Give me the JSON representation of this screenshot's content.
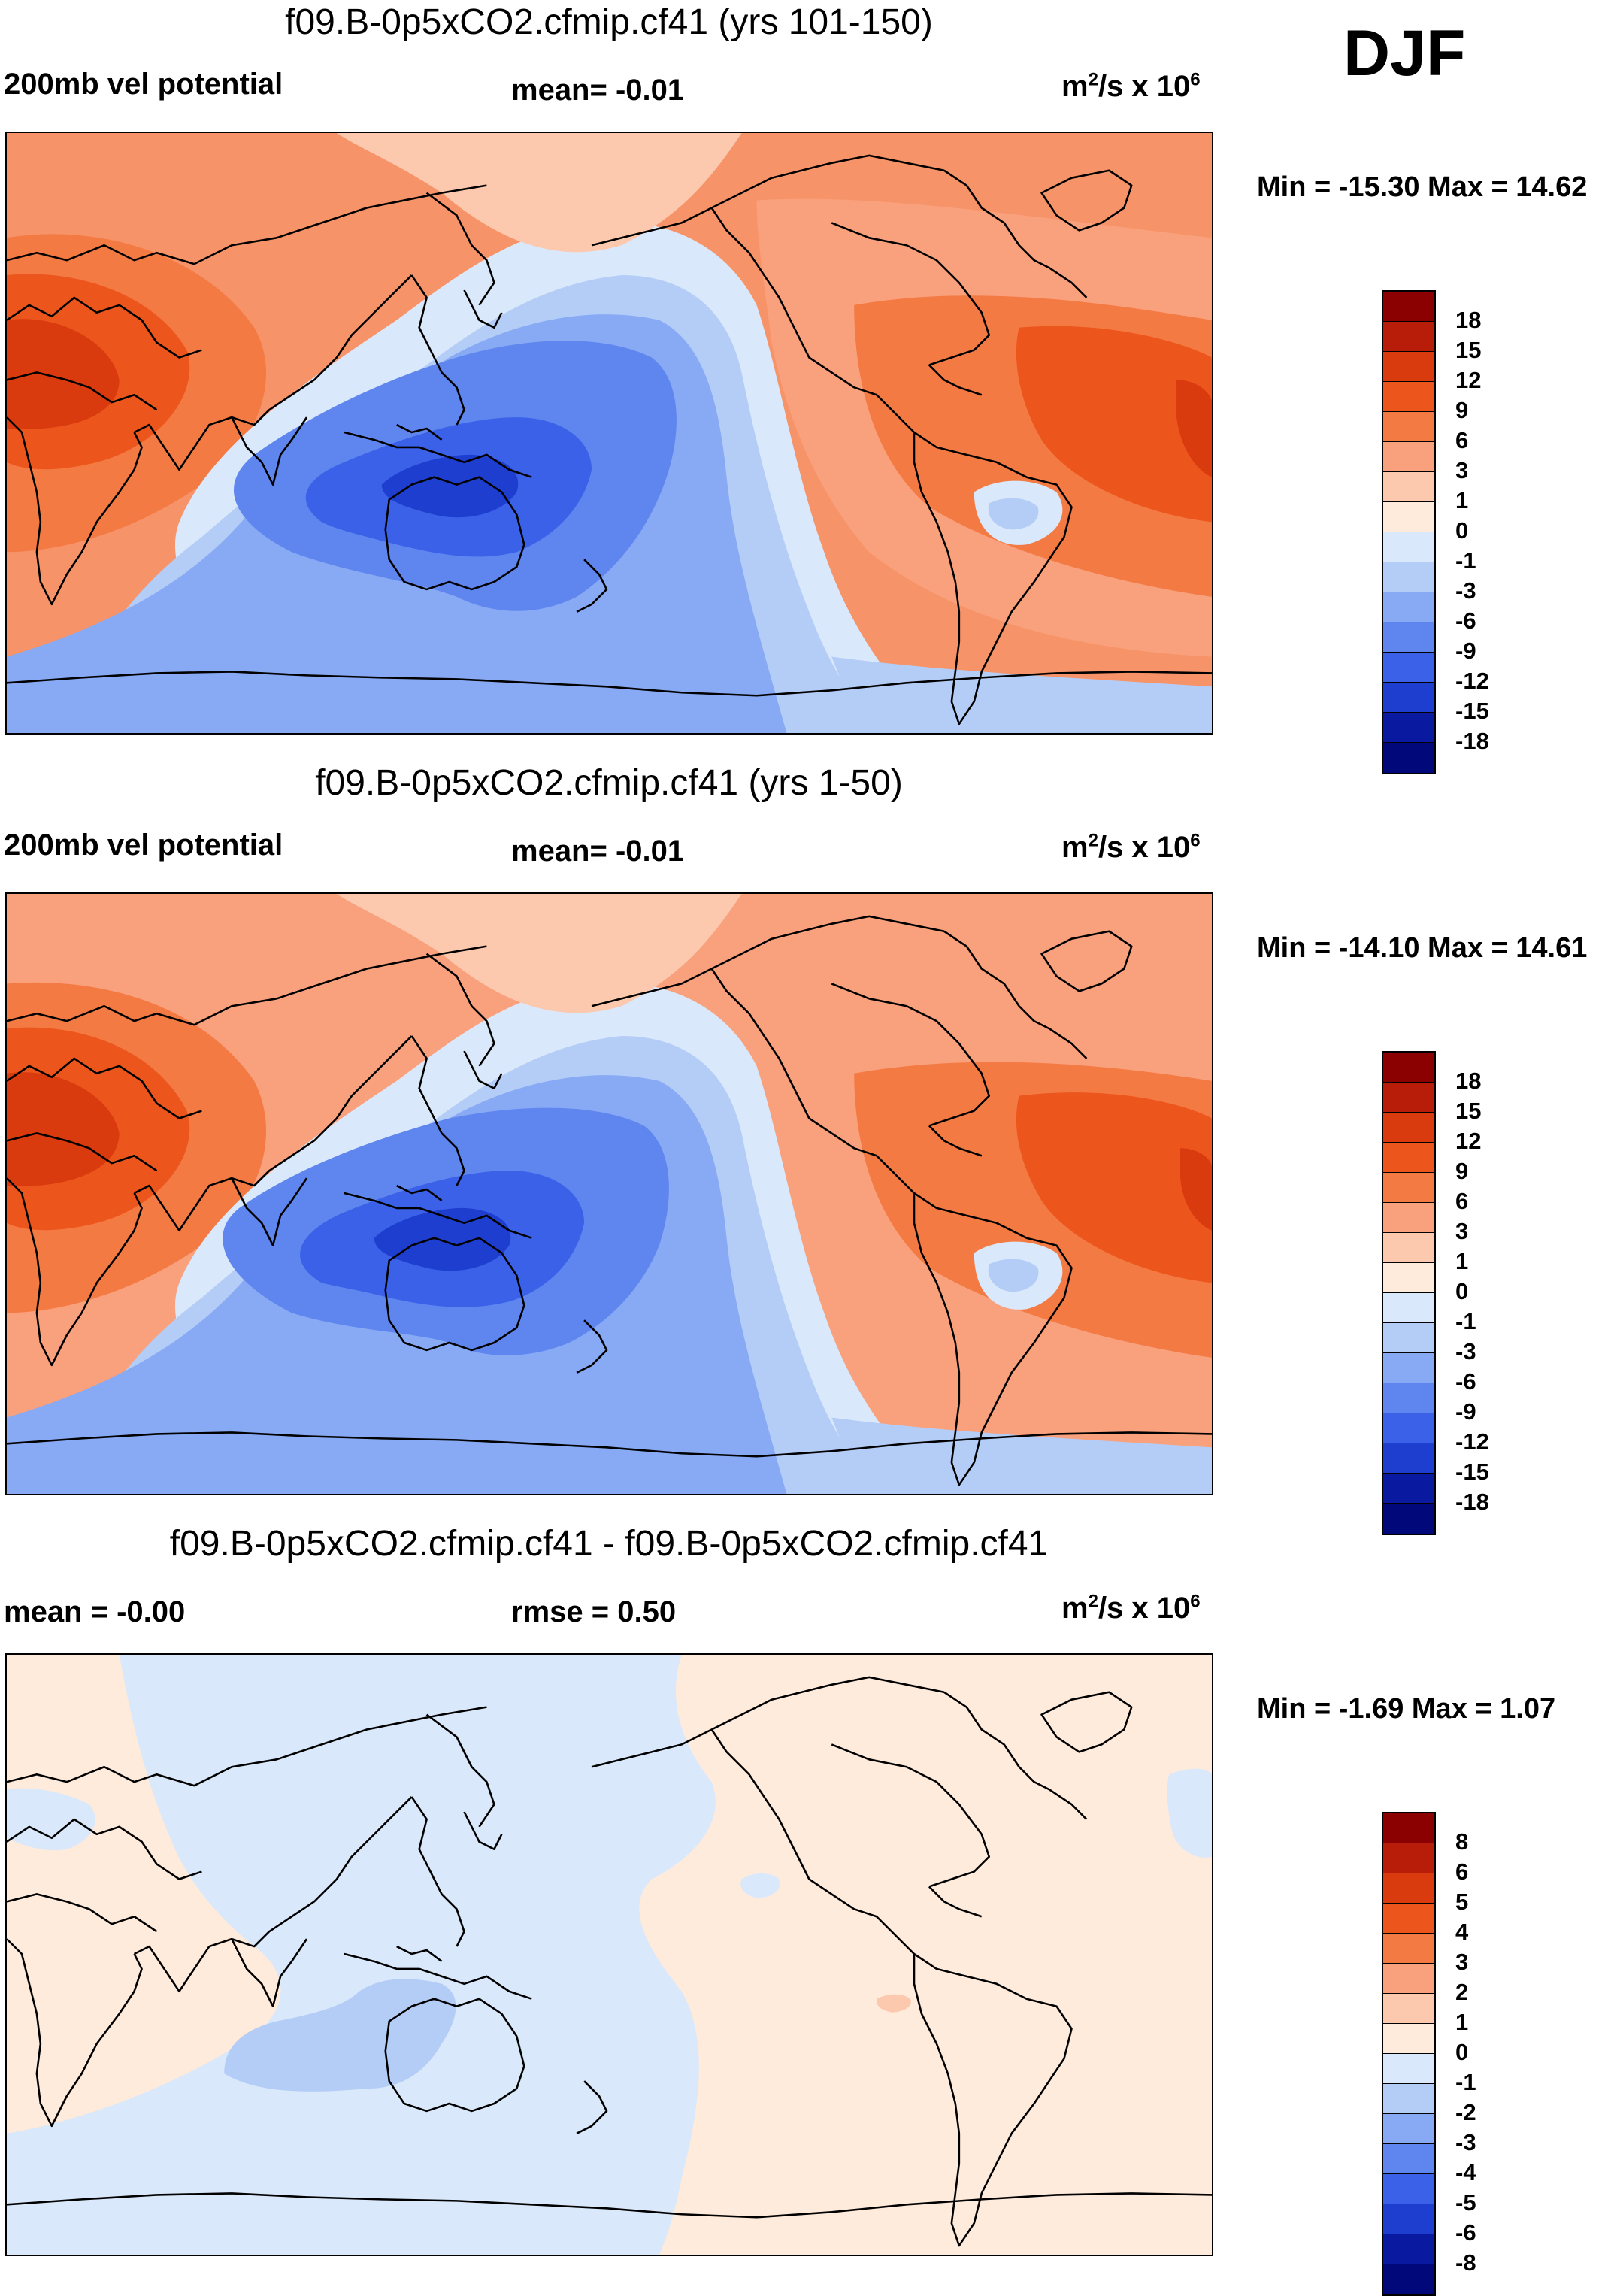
{
  "season": "DJF",
  "units_base": "m",
  "units_exp": "2",
  "units_mid": "/s x 10",
  "units_pow": "6",
  "panels": [
    {
      "title": "f09.B-0p5xCO2.cfmip.cf41 (yrs 101-150)",
      "left_label": "200mb vel potential",
      "center_label": "mean=  -0.01",
      "minmax": "Min = -15.30 Max =  14.62",
      "levels": [
        "18",
        "15",
        "12",
        "9",
        "6",
        "3",
        "1",
        "0",
        "-1",
        "-3",
        "-6",
        "-9",
        "-12",
        "-15",
        "-18"
      ]
    },
    {
      "title": "f09.B-0p5xCO2.cfmip.cf41 (yrs 1-50)",
      "left_label": "200mb vel potential",
      "center_label": "mean=  -0.01",
      "minmax": "Min = -14.10 Max =  14.61",
      "levels": [
        "18",
        "15",
        "12",
        "9",
        "6",
        "3",
        "1",
        "0",
        "-1",
        "-3",
        "-6",
        "-9",
        "-12",
        "-15",
        "-18"
      ]
    },
    {
      "title": "f09.B-0p5xCO2.cfmip.cf41 - f09.B-0p5xCO2.cfmip.cf41",
      "left_label": "mean =  -0.00",
      "center_label": "rmse =   0.50",
      "minmax": "Min =  -1.69 Max =   1.07",
      "levels": [
        "8",
        "6",
        "5",
        "4",
        "3",
        "2",
        "1",
        "0",
        "-1",
        "-2",
        "-3",
        "-4",
        "-5",
        "-6",
        "-8"
      ]
    }
  ],
  "colorbar_colors": [
    "#8b0000",
    "#b81d0a",
    "#d93a0e",
    "#ec561c",
    "#f47a44",
    "#f9a07c",
    "#fcc8ae",
    "#feebdc",
    "#d9e8fa",
    "#b4cdf7",
    "#88aaf4",
    "#5f86ef",
    "#3a61e8",
    "#1e3ecf",
    "#0a1aa0",
    "#00087a"
  ]
}
